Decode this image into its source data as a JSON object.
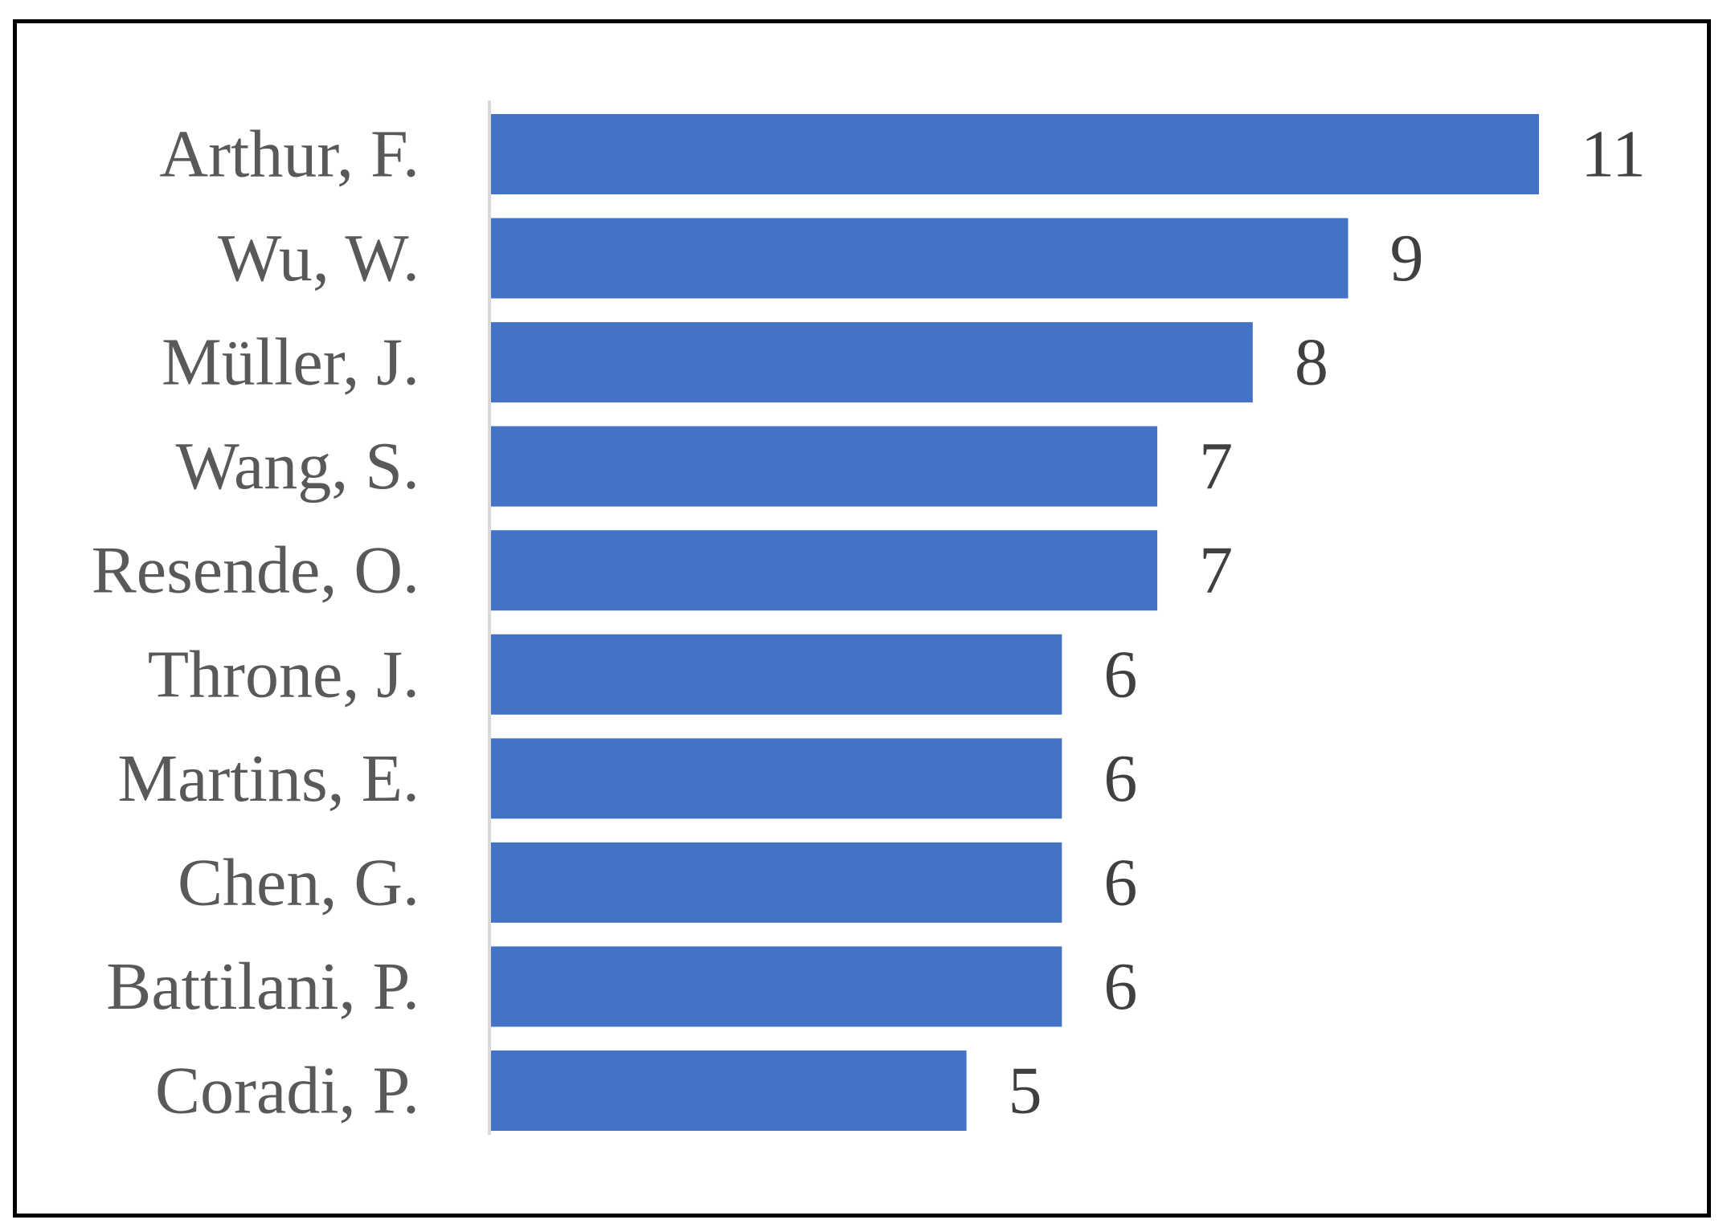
{
  "chart_data": {
    "type": "bar",
    "orientation": "horizontal",
    "categories": [
      "Arthur, F.",
      "Wu, W.",
      "Müller, J.",
      "Wang, S.",
      "Resende, O.",
      "Throne, J.",
      "Martins, E.",
      "Chen, G.",
      "Battilani, P.",
      "Coradi, P."
    ],
    "values": [
      11,
      9,
      8,
      7,
      7,
      6,
      6,
      6,
      6,
      5
    ],
    "xlim": [
      0,
      11
    ],
    "title": "",
    "xlabel": "",
    "ylabel": "",
    "grid": false,
    "legend": "none",
    "data_labels": true,
    "colors": {
      "bar": "#4472C4",
      "axis": "#D9D9D9",
      "category_text": "#595959",
      "value_text": "#404040",
      "frame": "#000000"
    }
  }
}
